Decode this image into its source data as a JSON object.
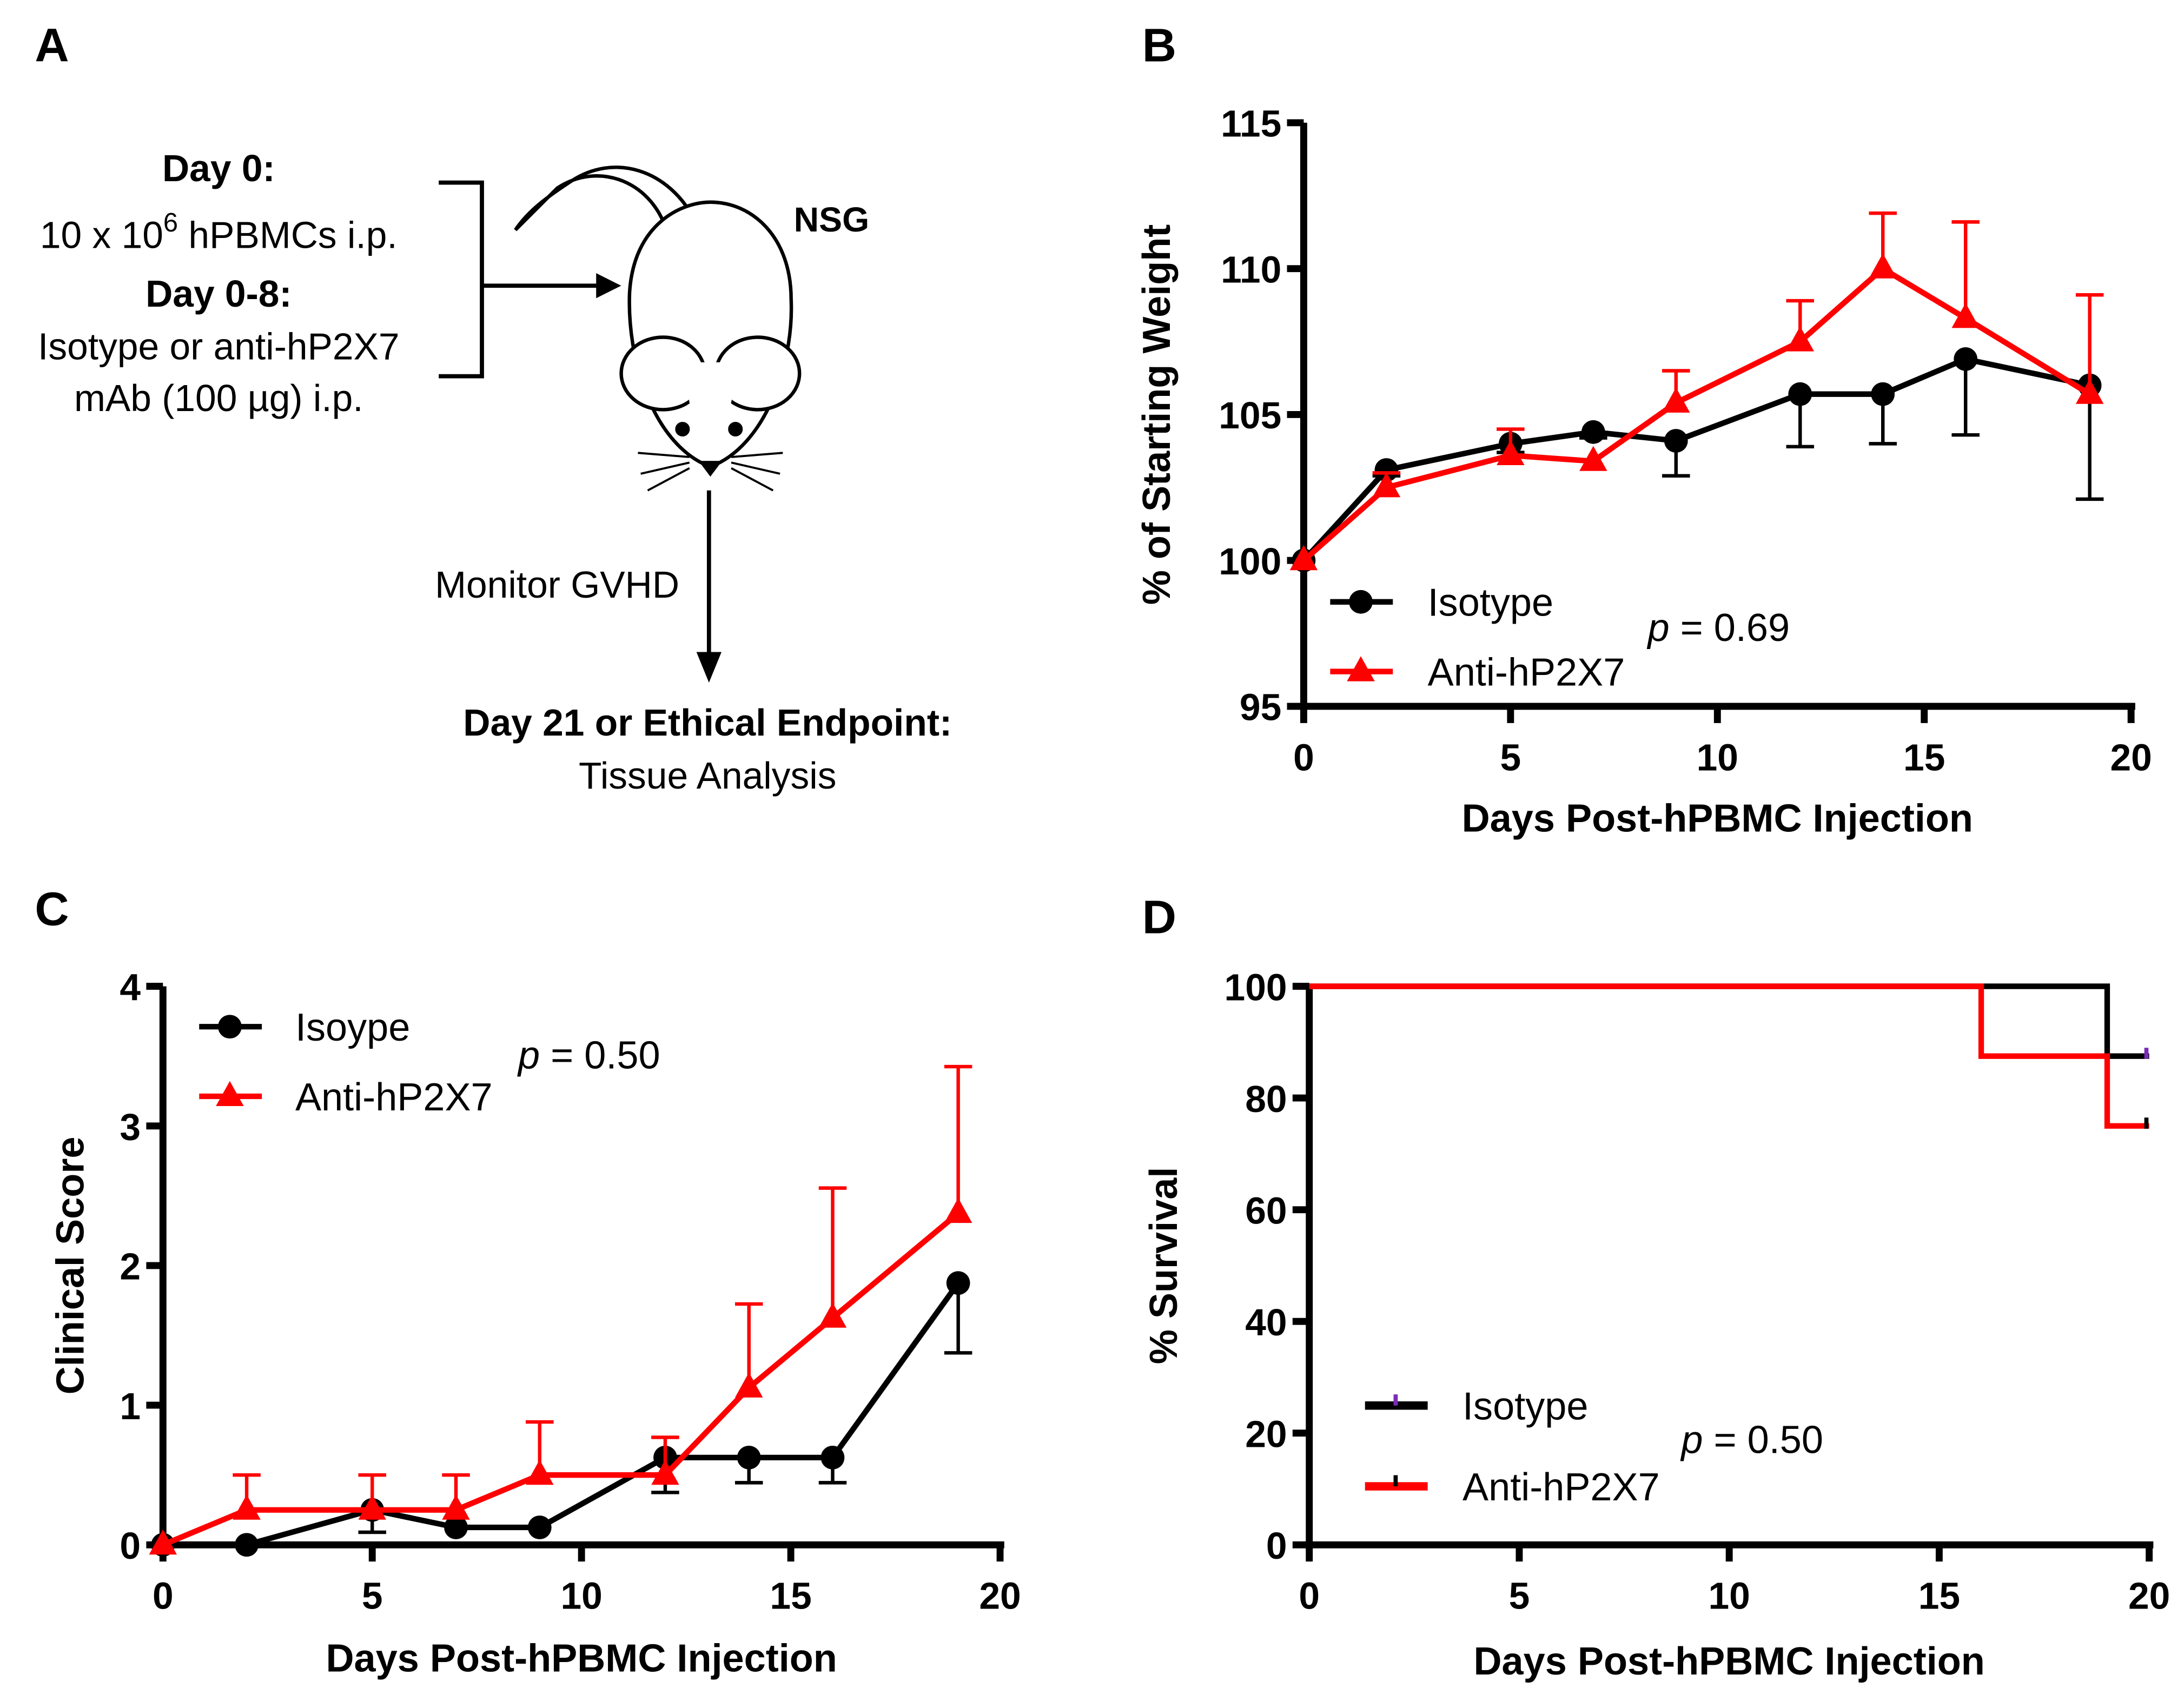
{
  "panel_labels": [
    "A",
    "B",
    "C",
    "D"
  ],
  "schematic": {
    "day0_title": "Day 0:",
    "day0_text_pre": "10 x 10",
    "day0_text_sup": "6",
    "day0_text_post": " hPBMCs i.p.",
    "day08_title": "Day 0-8:",
    "day08_line1": "Isotype or anti-hP2X7",
    "day08_line2": "mAb (100 µg) i.p.",
    "mouse_label": "NSG",
    "monitor": "Monitor GVHD",
    "endpoint_title": "Day 21 or Ethical Endpoint:",
    "endpoint_text": "Tissue Analysis"
  },
  "colors": {
    "isotype": "#000000",
    "anti": "#ff0000"
  },
  "chart_data": [
    {
      "id": "B",
      "type": "line",
      "xlabel": "Days Post-hPBMC Injection",
      "ylabel": "% of Starting Weight",
      "xlim": [
        0,
        20
      ],
      "ylim": [
        95,
        115
      ],
      "xticks": [
        "0",
        "5",
        "10",
        "15",
        "20"
      ],
      "yticks": [
        "95",
        "100",
        "105",
        "110",
        "115"
      ],
      "annotation": "p = 0.69",
      "legend": "bottom-left",
      "series": [
        {
          "name": "Isotype",
          "marker": "circle",
          "x": [
            0,
            2,
            5,
            7,
            9,
            12,
            14,
            16,
            19
          ],
          "values": [
            100,
            103.1,
            104.0,
            104.4,
            104.1,
            105.7,
            105.7,
            106.9,
            106.0
          ],
          "err": [
            0,
            0.2,
            0.3,
            0.2,
            1.2,
            1.8,
            1.7,
            2.6,
            3.9
          ],
          "err_dir": "down"
        },
        {
          "name": "Anti-hP2X7",
          "marker": "triangle",
          "x": [
            0,
            2,
            5,
            7,
            9,
            12,
            14,
            16,
            19
          ],
          "values": [
            100,
            102.5,
            103.6,
            103.4,
            105.4,
            107.5,
            110.0,
            108.3,
            105.7
          ],
          "err": [
            0,
            0.5,
            0.9,
            0,
            1.1,
            1.4,
            1.9,
            3.3,
            3.4
          ],
          "err_dir": "up"
        }
      ]
    },
    {
      "id": "C",
      "type": "line",
      "xlabel": "Days Post-hPBMC Injection",
      "ylabel": "Clinical Score",
      "xlim": [
        0,
        20
      ],
      "ylim": [
        0,
        4
      ],
      "xticks": [
        "0",
        "5",
        "10",
        "15",
        "20"
      ],
      "yticks": [
        "0",
        "1",
        "2",
        "3",
        "4"
      ],
      "annotation": "p = 0.50",
      "legend": "top-left",
      "series": [
        {
          "name": "Isoype",
          "marker": "circle",
          "x": [
            0,
            2,
            5,
            7,
            9,
            12,
            14,
            16,
            19
          ],
          "values": [
            0,
            0,
            0.25,
            0.125,
            0.125,
            0.625,
            0.625,
            0.625,
            1.875
          ],
          "err": [
            0,
            0,
            0.16,
            0,
            0,
            0.25,
            0.18,
            0.18,
            0.5
          ],
          "err_dir": "down"
        },
        {
          "name": "Anti-hP2X7",
          "marker": "triangle",
          "x": [
            0,
            2,
            5,
            7,
            9,
            12,
            14,
            16,
            19
          ],
          "values": [
            0,
            0.25,
            0.25,
            0.25,
            0.5,
            0.5,
            1.125,
            1.625,
            2.375
          ],
          "err": [
            0,
            0.25,
            0.25,
            0.25,
            0.38,
            0.27,
            0.6,
            0.93,
            1.05
          ],
          "err_dir": "up"
        }
      ]
    },
    {
      "id": "D",
      "type": "line",
      "xlabel": "Days Post-hPBMC Injection",
      "ylabel": "% Survival",
      "xlim": [
        0,
        20
      ],
      "ylim": [
        0,
        100
      ],
      "xticks": [
        "0",
        "5",
        "10",
        "15",
        "20"
      ],
      "yticks": [
        "0",
        "20",
        "40",
        "60",
        "80",
        "100"
      ],
      "annotation": "p = 0.50",
      "legend": "bottom-left",
      "series": [
        {
          "name": "Isotype",
          "step": true,
          "x": [
            0,
            19,
            20
          ],
          "values": [
            100,
            87.5,
            87.5
          ]
        },
        {
          "name": "Anti-hP2X7",
          "step": true,
          "x": [
            0,
            16,
            19,
            20
          ],
          "values": [
            100,
            87.5,
            75,
            75
          ]
        }
      ]
    }
  ]
}
